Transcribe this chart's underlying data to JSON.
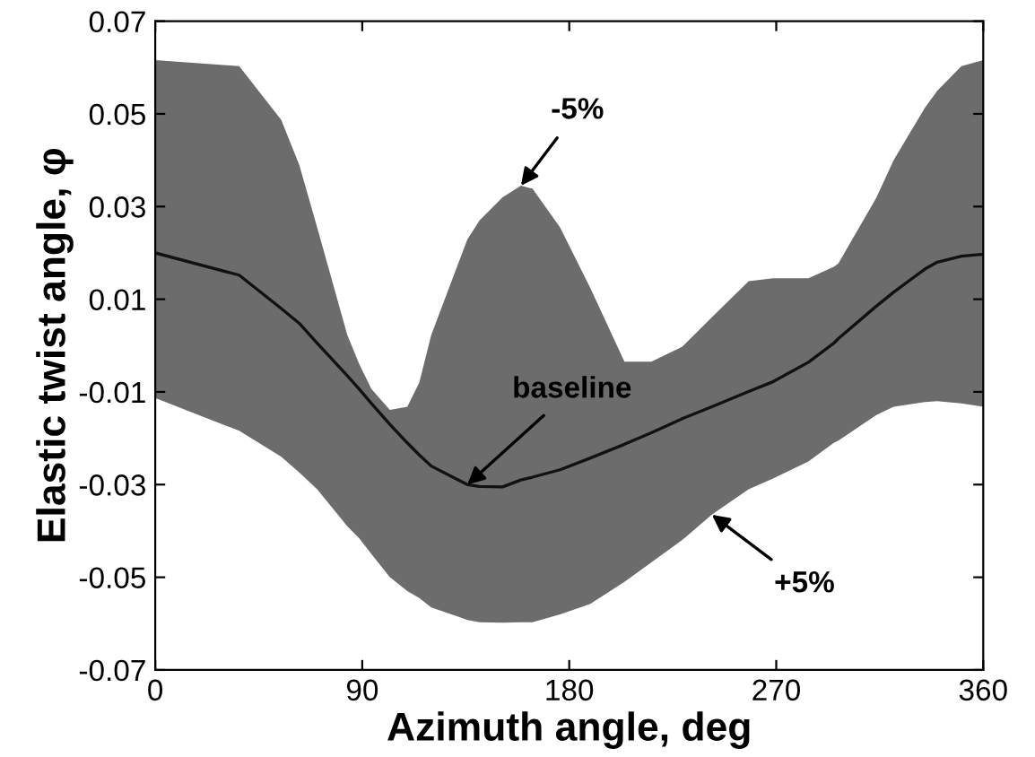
{
  "chart_data": {
    "type": "line",
    "xlabel": "Azimuth angle, deg",
    "ylabel": "Elastic twist angle, φ",
    "xlim": [
      0,
      360
    ],
    "xticks": [
      0,
      90,
      180,
      270,
      360
    ],
    "ylim": [
      -0.07,
      0.07
    ],
    "yticks": [
      -0.07,
      -0.05,
      -0.03,
      -0.01,
      0.01,
      0.03,
      0.05,
      0.07
    ],
    "grid": false,
    "legend": false,
    "series": [
      {
        "color": "#111111",
        "x": [
          0,
          36.5,
          54.8,
          62.6,
          70.4,
          83.5,
          88.7,
          94,
          102,
          109.6,
          114.8,
          120,
          135.7,
          141,
          151,
          159,
          163,
          164,
          176,
          189,
          204,
          215.7,
          229,
          242,
          258,
          268.6,
          284,
          295,
          297,
          313.5,
          321,
          334.6,
          340,
          350.5,
          360
        ],
        "values": [
          0.02,
          0.0152,
          0.008,
          0.0048,
          0.0005,
          -0.0065,
          -0.0094,
          -0.0125,
          -0.017,
          -0.021,
          -0.0236,
          -0.026,
          -0.03,
          -0.0304,
          -0.0305,
          -0.029,
          -0.0285,
          -0.0284,
          -0.0268,
          -0.0243,
          -0.0213,
          -0.0188,
          -0.0158,
          -0.0132,
          -0.0099,
          -0.0078,
          -0.0036,
          0.0005,
          0.0015,
          0.0085,
          0.0115,
          0.0165,
          0.018,
          0.0193,
          0.0197
        ],
        "upper": [
          0.0616,
          0.0603,
          0.0487,
          0.039,
          0.0255,
          0.0023,
          -0.004,
          -0.0094,
          -0.0139,
          -0.0132,
          -0.008,
          0.0023,
          0.0229,
          0.027,
          0.032,
          0.0345,
          0.034,
          0.0339,
          0.0255,
          0.0126,
          -0.0035,
          -0.0035,
          -0.0003,
          0.0061,
          0.0139,
          0.0145,
          0.0145,
          0.017,
          0.0177,
          0.0319,
          0.04,
          0.0513,
          0.055,
          0.0603,
          0.0616
        ],
        "lower": [
          -0.0113,
          -0.0184,
          -0.024,
          -0.0274,
          -0.031,
          -0.039,
          -0.0416,
          -0.045,
          -0.05,
          -0.053,
          -0.0545,
          -0.0565,
          -0.0592,
          -0.0597,
          -0.0598,
          -0.0597,
          -0.0597,
          -0.0597,
          -0.058,
          -0.0558,
          -0.051,
          -0.0468,
          -0.042,
          -0.0365,
          -0.031,
          -0.0287,
          -0.025,
          -0.021,
          -0.0205,
          -0.015,
          -0.0132,
          -0.0122,
          -0.012,
          -0.0125,
          -0.0132
        ]
      }
    ],
    "annotations": [
      {
        "text": "-5%",
        "x": 159,
        "y": 0.0345
      },
      {
        "text": "baseline",
        "x": 135.7,
        "y": -0.03
      },
      {
        "text": "+5%",
        "x": 242,
        "y": -0.0365
      }
    ]
  }
}
